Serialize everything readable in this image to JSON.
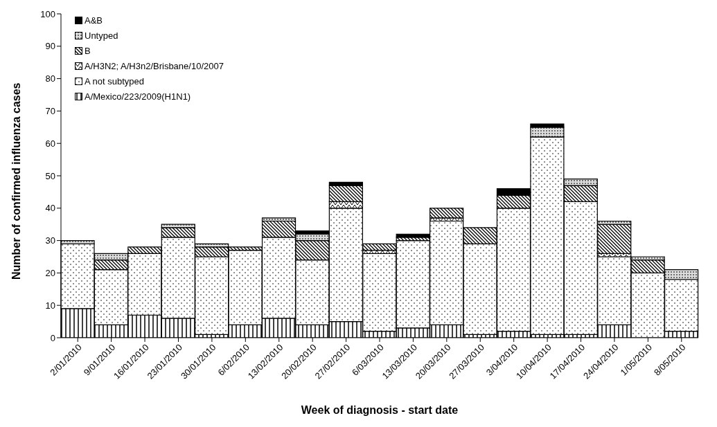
{
  "chart_data": {
    "type": "bar",
    "stacked": true,
    "xlabel": "Week of diagnosis - start date",
    "ylabel": "Number of confirmed influenza cases",
    "categories": [
      "2/01/2010",
      "9/01/2010",
      "16/01/2010",
      "23/01/2010",
      "30/01/2010",
      "6/02/2010",
      "13/02/2010",
      "20/02/2010",
      "27/02/2010",
      "6/03/2010",
      "13/03/2010",
      "20/03/2010",
      "27/03/2010",
      "3/04/2010",
      "10/04/2010",
      "17/04/2010",
      "24/04/2010",
      "1/05/2010",
      "8/05/2010"
    ],
    "series": [
      {
        "name": "A/Mexico/223/2009(H1N1)",
        "color": "#000000",
        "values": [
          9,
          4,
          7,
          6,
          1,
          4,
          6,
          4,
          5,
          2,
          3,
          4,
          1,
          2,
          1,
          1,
          4,
          0,
          2
        ]
      },
      {
        "name": "A not subtyped",
        "color": "#000000",
        "values": [
          20,
          17,
          19,
          25,
          24,
          23,
          25,
          20,
          35,
          24,
          27,
          32,
          28,
          38,
          61,
          41,
          21,
          20,
          16
        ]
      },
      {
        "name": "A/H3N2; A/H3n2/Brisbane/10/2007",
        "color": "#000000",
        "values": [
          0,
          0,
          0,
          0,
          0,
          0,
          0,
          0,
          2,
          1,
          0,
          1,
          0,
          0,
          0,
          0,
          1,
          0,
          0
        ]
      },
      {
        "name": "B",
        "color": "#000000",
        "values": [
          0,
          3,
          2,
          3,
          3,
          1,
          5,
          6,
          5,
          2,
          1,
          3,
          5,
          4,
          0,
          5,
          9,
          4,
          0
        ]
      },
      {
        "name": "Untyped",
        "color": "#000000",
        "values": [
          1,
          2,
          0,
          1,
          1,
          0,
          1,
          2,
          0,
          0,
          0,
          0,
          0,
          0,
          3,
          2,
          1,
          1,
          3
        ]
      },
      {
        "name": "A&B",
        "color": "#000000",
        "values": [
          0,
          0,
          0,
          0,
          0,
          0,
          0,
          1,
          1,
          0,
          1,
          0,
          0,
          2,
          1,
          0,
          0,
          0,
          0
        ]
      }
    ],
    "ylim": [
      0,
      100
    ],
    "yticks": [
      0,
      10,
      20,
      30,
      40,
      50,
      60,
      70,
      80,
      90,
      100
    ],
    "grid": false,
    "legend": "top left"
  }
}
